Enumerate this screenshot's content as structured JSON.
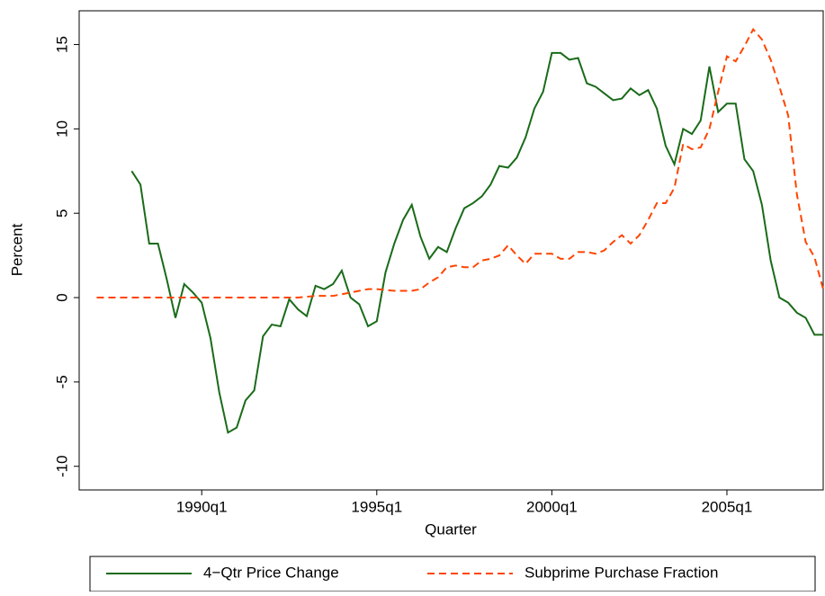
{
  "chart_data": {
    "type": "line",
    "x": [
      "1987q1",
      "1987q2",
      "1987q3",
      "1987q4",
      "1988q1",
      "1988q2",
      "1988q3",
      "1988q4",
      "1989q1",
      "1989q2",
      "1989q3",
      "1989q4",
      "1990q1",
      "1990q2",
      "1990q3",
      "1990q4",
      "1991q1",
      "1991q2",
      "1991q3",
      "1991q4",
      "1992q1",
      "1992q2",
      "1992q3",
      "1992q4",
      "1993q1",
      "1993q2",
      "1993q3",
      "1993q4",
      "1994q1",
      "1994q2",
      "1994q3",
      "1994q4",
      "1995q1",
      "1995q2",
      "1995q3",
      "1995q4",
      "1996q1",
      "1996q2",
      "1996q3",
      "1996q4",
      "1997q1",
      "1997q2",
      "1997q3",
      "1997q4",
      "1998q1",
      "1998q2",
      "1998q3",
      "1998q4",
      "1999q1",
      "1999q2",
      "1999q3",
      "1999q4",
      "2000q1",
      "2000q2",
      "2000q3",
      "2000q4",
      "2001q1",
      "2001q2",
      "2001q3",
      "2001q4",
      "2002q1",
      "2002q2",
      "2002q3",
      "2002q4",
      "2003q1",
      "2003q2",
      "2003q3",
      "2003q4",
      "2004q1",
      "2004q2",
      "2004q3",
      "2004q4",
      "2005q1",
      "2005q2",
      "2005q3",
      "2005q4",
      "2006q1",
      "2006q2",
      "2006q3",
      "2006q4",
      "2007q1",
      "2007q2",
      "2007q3",
      "2007q4"
    ],
    "series": [
      {
        "name": "4−Qtr Price Change",
        "color": "#1a6b1a",
        "dash": "solid",
        "values": [
          null,
          null,
          null,
          null,
          7.5,
          6.7,
          3.2,
          3.2,
          1.1,
          -1.2,
          0.8,
          0.3,
          -0.3,
          -2.4,
          -5.6,
          -8.0,
          -7.7,
          -6.1,
          -5.5,
          -2.3,
          -1.6,
          -1.7,
          -0.1,
          -0.7,
          -1.1,
          0.7,
          0.5,
          0.8,
          1.6,
          0.0,
          -0.4,
          -1.7,
          -1.4,
          1.5,
          3.2,
          4.6,
          5.5,
          3.6,
          2.3,
          3.0,
          2.7,
          4.1,
          5.3,
          5.6,
          6.0,
          6.7,
          7.8,
          7.7,
          8.3,
          9.5,
          11.2,
          12.2,
          14.5,
          14.5,
          14.1,
          14.2,
          12.7,
          12.5,
          12.1,
          11.7,
          11.8,
          12.4,
          12.0,
          12.3,
          11.2,
          9.0,
          7.9,
          10.0,
          9.7,
          10.5,
          13.7,
          11.0,
          11.5,
          11.5,
          8.2,
          7.5,
          5.5,
          2.2,
          0.0,
          -0.3,
          -0.9,
          -1.2,
          -2.2,
          -2.2
        ]
      },
      {
        "name": "Subprime Purchase Fraction",
        "color": "#ff4500",
        "dash": "dashed",
        "values": [
          0,
          0,
          0,
          0,
          0,
          0,
          0,
          0,
          0,
          0,
          0,
          0,
          0,
          0,
          0,
          0,
          0,
          0,
          0,
          0,
          0,
          0,
          0,
          0,
          0.05,
          0.1,
          0.1,
          0.1,
          0.2,
          0.3,
          0.4,
          0.5,
          0.5,
          0.45,
          0.4,
          0.4,
          0.4,
          0.5,
          0.9,
          1.2,
          1.8,
          1.9,
          1.8,
          1.8,
          2.2,
          2.3,
          2.5,
          3.1,
          2.5,
          2.0,
          2.6,
          2.6,
          2.6,
          2.3,
          2.3,
          2.7,
          2.7,
          2.6,
          2.8,
          3.3,
          3.7,
          3.2,
          3.7,
          4.6,
          5.6,
          5.6,
          6.5,
          9.1,
          8.8,
          8.9,
          10.0,
          12.2,
          14.3,
          14.0,
          14.9,
          15.9,
          15.3,
          14.1,
          12.5,
          10.8,
          6.1,
          3.3,
          2.4,
          0.5
        ]
      }
    ],
    "x_label": "Quarter",
    "y_label": "Percent",
    "xlim": [
      "1986q3",
      "2007q4"
    ],
    "xticks": [
      "1990q1",
      "1995q1",
      "2000q1",
      "2005q1"
    ],
    "ylim": [
      -11.4,
      17
    ],
    "yticks": [
      -10,
      -5,
      0,
      5,
      10,
      15
    ],
    "legend": "bottom",
    "grid": false
  }
}
